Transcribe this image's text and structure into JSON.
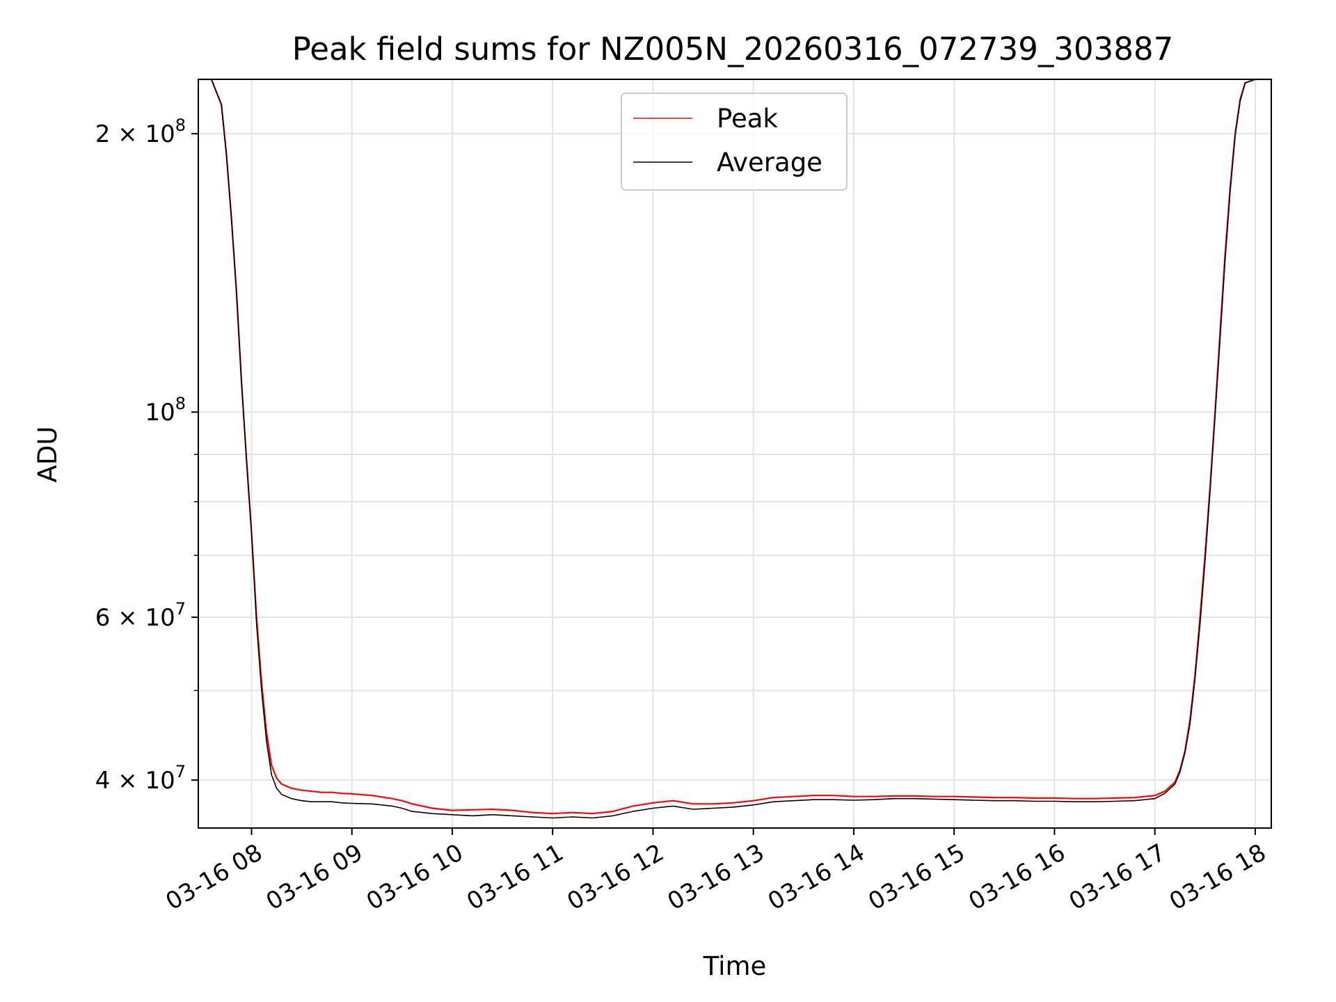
{
  "chart_data": {
    "type": "line",
    "title": "Peak field sums for NZ005N_20260316_072739_303887",
    "xlabel": "Time",
    "ylabel": "ADU",
    "yscale": "log",
    "xlim": [
      7.47,
      18.16
    ],
    "ylim": [
      35500000,
      229000000
    ],
    "grid": true,
    "legend_position": "top-center",
    "x_ticks": [
      {
        "x": 8,
        "label": "03-16 08"
      },
      {
        "x": 9,
        "label": "03-16 09"
      },
      {
        "x": 10,
        "label": "03-16 10"
      },
      {
        "x": 11,
        "label": "03-16 11"
      },
      {
        "x": 12,
        "label": "03-16 12"
      },
      {
        "x": 13,
        "label": "03-16 13"
      },
      {
        "x": 14,
        "label": "03-16 14"
      },
      {
        "x": 15,
        "label": "03-16 15"
      },
      {
        "x": 16,
        "label": "03-16 16"
      },
      {
        "x": 17,
        "label": "03-16 17"
      },
      {
        "x": 18,
        "label": "03-16 18"
      }
    ],
    "y_ticks": [
      {
        "y": 40000000,
        "mantissa": "4 × 10",
        "exponent": "7"
      },
      {
        "y": 60000000,
        "mantissa": "6 × 10",
        "exponent": "7"
      },
      {
        "y": 100000000,
        "mantissa": "10",
        "exponent": "8"
      },
      {
        "y": 200000000,
        "mantissa": "2 × 10",
        "exponent": "8"
      }
    ],
    "y_minor_ticks": [
      50000000,
      70000000,
      80000000,
      90000000
    ],
    "series": [
      {
        "name": "Peak",
        "color": "#ff0000",
        "x": [
          7.47,
          7.6,
          7.7,
          7.75,
          7.8,
          7.85,
          7.9,
          7.95,
          8.0,
          8.05,
          8.1,
          8.15,
          8.2,
          8.25,
          8.3,
          8.4,
          8.5,
          8.6,
          8.7,
          8.8,
          8.9,
          9.0,
          9.2,
          9.4,
          9.5,
          9.6,
          9.8,
          10.0,
          10.2,
          10.4,
          10.6,
          10.8,
          11.0,
          11.2,
          11.4,
          11.6,
          11.8,
          12.0,
          12.2,
          12.4,
          12.6,
          12.8,
          13.0,
          13.2,
          13.4,
          13.6,
          13.8,
          14.0,
          14.2,
          14.4,
          14.6,
          14.8,
          15.0,
          15.2,
          15.4,
          15.6,
          15.8,
          16.0,
          16.2,
          16.4,
          16.6,
          16.8,
          17.0,
          17.1,
          17.2,
          17.25,
          17.3,
          17.35,
          17.4,
          17.45,
          17.5,
          17.55,
          17.6,
          17.65,
          17.7,
          17.75,
          17.8,
          17.85,
          17.9,
          18.0,
          18.16
        ],
        "values": [
          229000000,
          229000000,
          215000000,
          190000000,
          162000000,
          135000000,
          108000000,
          89000000,
          74000000,
          60000000,
          51000000,
          45000000,
          41500000,
          40200000,
          39600000,
          39200000,
          39000000,
          38900000,
          38800000,
          38800000,
          38700000,
          38650000,
          38500000,
          38200000,
          38000000,
          37700000,
          37300000,
          37100000,
          37150000,
          37200000,
          37100000,
          36900000,
          36800000,
          36900000,
          36800000,
          37000000,
          37500000,
          37800000,
          38000000,
          37700000,
          37700000,
          37800000,
          38000000,
          38300000,
          38400000,
          38500000,
          38500000,
          38400000,
          38400000,
          38450000,
          38450000,
          38400000,
          38400000,
          38350000,
          38300000,
          38300000,
          38250000,
          38250000,
          38200000,
          38200000,
          38250000,
          38300000,
          38500000,
          38900000,
          39800000,
          41000000,
          43000000,
          46500000,
          52000000,
          60000000,
          70000000,
          83000000,
          100000000,
          122000000,
          148000000,
          175000000,
          200000000,
          218000000,
          227000000,
          229000000,
          229000000
        ]
      },
      {
        "name": "Average",
        "color": "#000000",
        "x": [
          7.47,
          7.6,
          7.7,
          7.75,
          7.8,
          7.85,
          7.9,
          7.95,
          8.0,
          8.05,
          8.1,
          8.15,
          8.2,
          8.25,
          8.3,
          8.4,
          8.5,
          8.6,
          8.7,
          8.8,
          8.9,
          9.0,
          9.2,
          9.4,
          9.5,
          9.6,
          9.8,
          10.0,
          10.2,
          10.4,
          10.6,
          10.8,
          11.0,
          11.2,
          11.4,
          11.6,
          11.8,
          12.0,
          12.2,
          12.4,
          12.6,
          12.8,
          13.0,
          13.2,
          13.4,
          13.6,
          13.8,
          14.0,
          14.2,
          14.4,
          14.6,
          14.8,
          15.0,
          15.2,
          15.4,
          15.6,
          15.8,
          16.0,
          16.2,
          16.4,
          16.6,
          16.8,
          17.0,
          17.1,
          17.2,
          17.25,
          17.3,
          17.35,
          17.4,
          17.45,
          17.5,
          17.55,
          17.6,
          17.65,
          17.7,
          17.75,
          17.8,
          17.85,
          17.9,
          18.0,
          18.16
        ],
        "values": [
          229000000,
          229000000,
          215000000,
          190000000,
          162000000,
          135000000,
          108000000,
          89000000,
          74000000,
          59000000,
          50000000,
          44000000,
          40500000,
          39200000,
          38600000,
          38200000,
          38000000,
          37900000,
          37900000,
          37900000,
          37800000,
          37750000,
          37700000,
          37500000,
          37300000,
          37000000,
          36800000,
          36700000,
          36600000,
          36700000,
          36600000,
          36500000,
          36400000,
          36500000,
          36400000,
          36600000,
          37000000,
          37300000,
          37500000,
          37200000,
          37300000,
          37400000,
          37600000,
          37900000,
          38000000,
          38100000,
          38100000,
          38050000,
          38100000,
          38200000,
          38200000,
          38150000,
          38100000,
          38050000,
          38000000,
          38000000,
          37950000,
          37950000,
          37900000,
          37900000,
          37950000,
          38000000,
          38200000,
          38700000,
          39600000,
          40800000,
          42800000,
          46000000,
          51500000,
          59000000,
          69000000,
          82000000,
          99000000,
          120000000,
          146000000,
          173000000,
          199000000,
          217000000,
          227000000,
          229000000,
          229000000
        ]
      }
    ]
  }
}
